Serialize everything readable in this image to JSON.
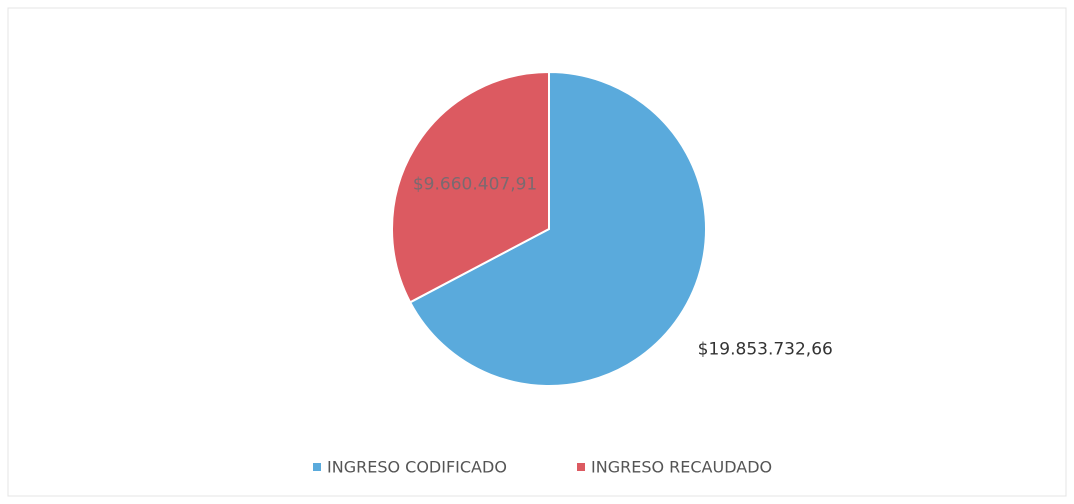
{
  "chart_data": {
    "type": "pie",
    "categories": [
      "INGRESO CODIFICADO",
      "INGRESO RECAUDADO"
    ],
    "values": [
      19853732.66,
      9660407.91
    ],
    "value_labels": [
      "$19.853.732,66",
      "$9.660.407,91"
    ],
    "colors": [
      "#5aaadc",
      "#dc5a61"
    ],
    "legend": "bottom"
  }
}
